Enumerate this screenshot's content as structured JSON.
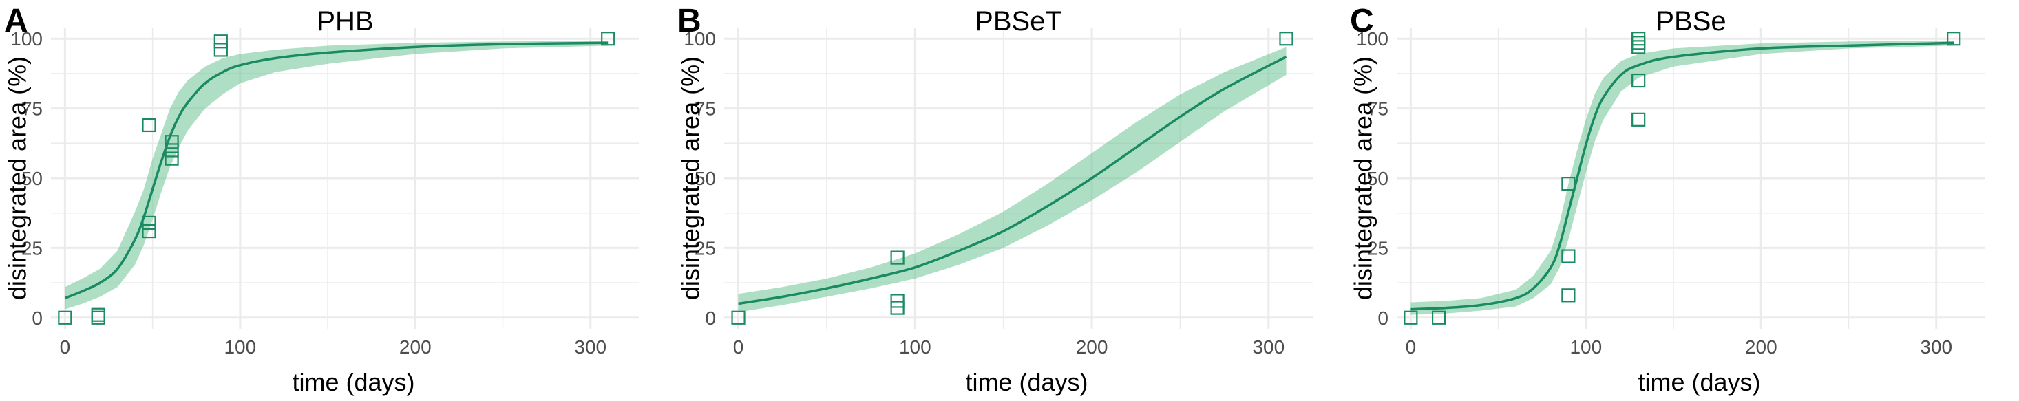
{
  "figure": {
    "accent_color": "#1a8a63",
    "ribbon_color": "#6cc494",
    "grid_color": "#ebebeb"
  },
  "chart_data": [
    {
      "type": "scatter",
      "panel_label": "A",
      "title": "PHB",
      "xlabel": "time (days)",
      "ylabel": "disintegrated area (%)",
      "xlim": [
        -8,
        328
      ],
      "ylim": [
        -4,
        104
      ],
      "x_ticks": [
        0,
        100,
        200,
        300
      ],
      "x_tick_labels": [
        "0",
        "100",
        "200",
        "300"
      ],
      "y_ticks": [
        0,
        25,
        50,
        75,
        100
      ],
      "y_tick_labels": [
        "0",
        "25",
        "50",
        "75",
        "100"
      ],
      "grid": true,
      "points": [
        {
          "x": 0,
          "y": 0
        },
        {
          "x": 19,
          "y": 1
        },
        {
          "x": 19,
          "y": 0
        },
        {
          "x": 48,
          "y": 69
        },
        {
          "x": 48,
          "y": 34
        },
        {
          "x": 48,
          "y": 31
        },
        {
          "x": 61,
          "y": 63
        },
        {
          "x": 61,
          "y": 60
        },
        {
          "x": 61,
          "y": 57
        },
        {
          "x": 89,
          "y": 99
        },
        {
          "x": 89,
          "y": 96
        },
        {
          "x": 310,
          "y": 100
        }
      ],
      "fit": {
        "x": [
          0,
          10,
          20,
          30,
          40,
          45,
          50,
          55,
          60,
          65,
          70,
          80,
          90,
          100,
          120,
          150,
          200,
          250,
          310
        ],
        "y": [
          7,
          9.5,
          12.5,
          17.5,
          28,
          36,
          46,
          56,
          65,
          72,
          77,
          84,
          88,
          90.5,
          93,
          95,
          97,
          98,
          98.5
        ],
        "lower": [
          3,
          5,
          7.5,
          11,
          19,
          26,
          35,
          45,
          54,
          61,
          67,
          75,
          80,
          84,
          88,
          91,
          94.5,
          96.5,
          97.5
        ],
        "upper": [
          11,
          14,
          17.5,
          24,
          38,
          46,
          57,
          66,
          75,
          81,
          85,
          90,
          93,
          94.5,
          96,
          97.5,
          98.5,
          99,
          99.3
        ]
      }
    },
    {
      "type": "scatter",
      "panel_label": "B",
      "title": "PBSeT",
      "xlabel": "time (days)",
      "ylabel": "disintegrated area (%)",
      "xlim": [
        -8,
        325
      ],
      "ylim": [
        -4,
        104
      ],
      "x_ticks": [
        0,
        100,
        200,
        300
      ],
      "x_tick_labels": [
        "0",
        "100",
        "200",
        "300"
      ],
      "y_ticks": [
        0,
        25,
        50,
        75,
        100
      ],
      "y_tick_labels": [
        "0",
        "25",
        "50",
        "75",
        "100"
      ],
      "grid": true,
      "points": [
        {
          "x": 0,
          "y": 0
        },
        {
          "x": 90,
          "y": 21.5
        },
        {
          "x": 90,
          "y": 6
        },
        {
          "x": 90,
          "y": 3.5
        },
        {
          "x": 310,
          "y": 100
        }
      ],
      "fit": {
        "x": [
          0,
          25,
          50,
          75,
          100,
          125,
          150,
          175,
          200,
          225,
          250,
          275,
          310
        ],
        "y": [
          5,
          7.5,
          10.5,
          14,
          18,
          24,
          31,
          40,
          50,
          61,
          72,
          82,
          93.5
        ],
        "lower": [
          2,
          4.5,
          7.5,
          10.5,
          14,
          19,
          25,
          33,
          42,
          52,
          63,
          74,
          87
        ],
        "upper": [
          8.5,
          11,
          14,
          18,
          23,
          30,
          38,
          48,
          59,
          70,
          80,
          88,
          97
        ]
      }
    },
    {
      "type": "scatter",
      "panel_label": "C",
      "title": "PBSe",
      "xlabel": "time (days)",
      "ylabel": "disintegrated area (%)",
      "xlim": [
        -8,
        328
      ],
      "ylim": [
        -4,
        104
      ],
      "x_ticks": [
        0,
        100,
        200,
        300
      ],
      "x_tick_labels": [
        "0",
        "100",
        "200",
        "300"
      ],
      "y_ticks": [
        0,
        25,
        50,
        75,
        100
      ],
      "y_tick_labels": [
        "0",
        "25",
        "50",
        "75",
        "100"
      ],
      "grid": true,
      "points": [
        {
          "x": 0,
          "y": 0
        },
        {
          "x": 16,
          "y": 0
        },
        {
          "x": 90,
          "y": 48
        },
        {
          "x": 90,
          "y": 22
        },
        {
          "x": 90,
          "y": 8
        },
        {
          "x": 130,
          "y": 100
        },
        {
          "x": 130,
          "y": 98.5
        },
        {
          "x": 130,
          "y": 97
        },
        {
          "x": 130,
          "y": 85
        },
        {
          "x": 130,
          "y": 71
        },
        {
          "x": 310,
          "y": 100
        }
      ],
      "fit": {
        "x": [
          0,
          20,
          40,
          60,
          70,
          80,
          85,
          90,
          95,
          100,
          105,
          110,
          120,
          130,
          150,
          200,
          250,
          310
        ],
        "y": [
          3,
          3.5,
          4.5,
          7,
          10.5,
          18,
          26,
          38,
          50,
          62,
          72,
          79,
          87,
          90.5,
          93.5,
          96.5,
          97.5,
          98.5
        ],
        "lower": [
          1,
          1.5,
          2.5,
          4,
          7,
          12,
          18,
          28,
          40,
          52,
          63,
          71,
          81,
          86,
          90,
          94.5,
          96.5,
          97.5
        ],
        "upper": [
          5.5,
          6,
          7,
          10,
          15,
          24,
          34,
          48,
          60,
          71,
          80,
          86,
          92,
          94.5,
          96.5,
          98.3,
          99,
          99.3
        ]
      }
    }
  ]
}
